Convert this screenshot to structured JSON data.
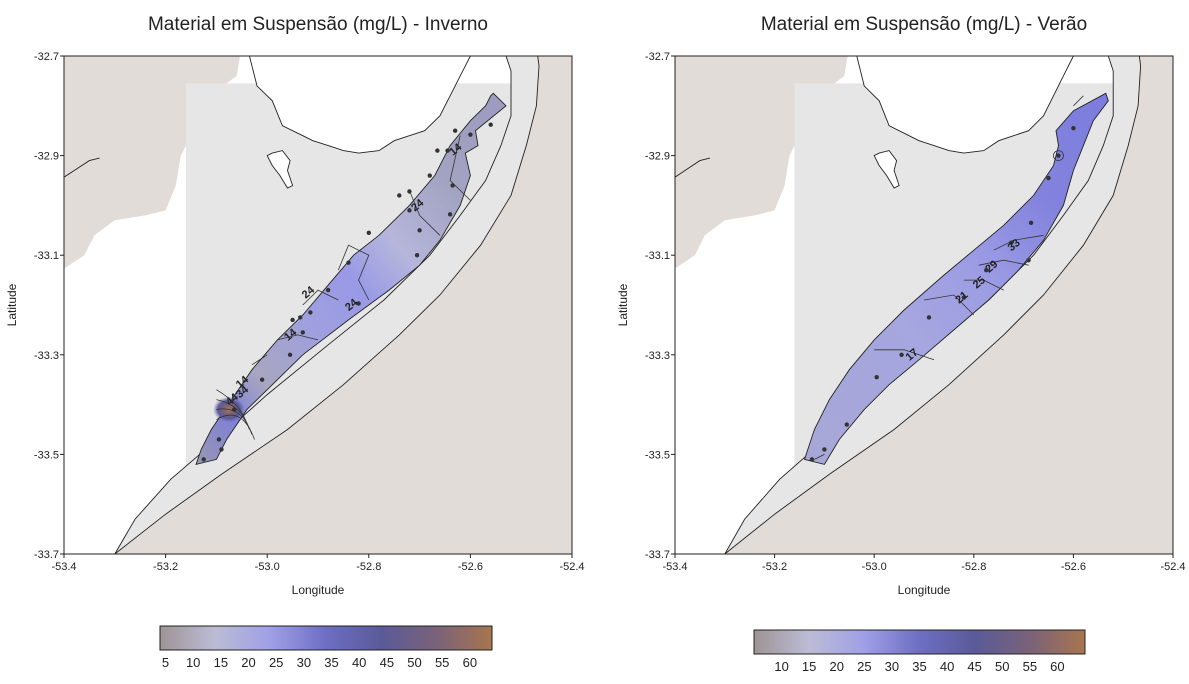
{
  "colorscale": {
    "stops": [
      "#9e9494",
      "#bcbcd6",
      "#9f9fe6",
      "#6e6ec4",
      "#5a5a99",
      "#7a6279",
      "#a8764f"
    ]
  },
  "colors": {
    "land": "#e2dcd9",
    "grid_area": "#e6e6e6",
    "water": "#ffffff",
    "contour": "#333333",
    "station": "#333333"
  },
  "chart_data": [
    {
      "type": "contour map",
      "title": "Material em Suspensão (mg/L) - Inverno",
      "xlabel": "Longitude",
      "ylabel": "Latitude",
      "xlim": [
        -53.4,
        -52.4
      ],
      "ylim": [
        -33.7,
        -32.7
      ],
      "x_ticks": [
        "-53.4",
        "-53.2",
        "-53.0",
        "-52.8",
        "-52.6",
        "-52.4"
      ],
      "y_ticks": [
        "-32.7",
        "-32.9",
        "-33.1",
        "-33.3",
        "-33.5",
        "-33.7"
      ],
      "colorbar": {
        "ticks": [
          "5",
          "10",
          "15",
          "20",
          "25",
          "30",
          "35",
          "40",
          "45",
          "50",
          "55",
          "60"
        ],
        "range": [
          4,
          64
        ]
      },
      "contour_labels": [
        {
          "text": "14",
          "lon": -52.625,
          "lat": -32.893
        },
        {
          "text": "24",
          "lon": -52.7,
          "lat": -33.005
        },
        {
          "text": "24",
          "lon": -52.915,
          "lat": -33.18
        },
        {
          "text": "24",
          "lon": -52.83,
          "lat": -33.205
        },
        {
          "text": "14",
          "lon": -52.95,
          "lat": -33.265
        },
        {
          "text": "14",
          "lon": -53.045,
          "lat": -33.36
        },
        {
          "text": "34",
          "lon": -53.045,
          "lat": -33.38
        },
        {
          "text": "44",
          "lon": -53.065,
          "lat": -33.395
        }
      ],
      "stations": [
        {
          "lon": -52.56,
          "lat": -32.838
        },
        {
          "lon": -52.6,
          "lat": -32.858
        },
        {
          "lon": -52.63,
          "lat": -32.85
        },
        {
          "lon": -52.645,
          "lat": -32.89
        },
        {
          "lon": -52.665,
          "lat": -32.89
        },
        {
          "lon": -52.68,
          "lat": -32.94
        },
        {
          "lon": -52.72,
          "lat": -32.972
        },
        {
          "lon": -52.74,
          "lat": -32.98
        },
        {
          "lon": -52.635,
          "lat": -32.96
        },
        {
          "lon": -52.64,
          "lat": -33.018
        },
        {
          "lon": -52.72,
          "lat": -33.01
        },
        {
          "lon": -52.7,
          "lat": -33.05
        },
        {
          "lon": -52.8,
          "lat": -33.055
        },
        {
          "lon": -52.705,
          "lat": -33.1
        },
        {
          "lon": -52.84,
          "lat": -33.115
        },
        {
          "lon": -52.88,
          "lat": -33.17
        },
        {
          "lon": -52.82,
          "lat": -33.197
        },
        {
          "lon": -52.935,
          "lat": -33.225
        },
        {
          "lon": -52.915,
          "lat": -33.215
        },
        {
          "lon": -52.95,
          "lat": -33.23
        },
        {
          "lon": -52.93,
          "lat": -33.255
        },
        {
          "lon": -52.955,
          "lat": -33.3
        },
        {
          "lon": -53.01,
          "lat": -33.35
        },
        {
          "lon": -53.065,
          "lat": -33.41
        },
        {
          "lon": -53.095,
          "lat": -33.47
        },
        {
          "lon": -53.09,
          "lat": -33.49
        },
        {
          "lon": -53.125,
          "lat": -33.51
        }
      ]
    },
    {
      "type": "contour map",
      "title": "Material em Suspensão (mg/L) - Verão",
      "xlabel": "Longitude",
      "ylabel": "Latitude",
      "xlim": [
        -53.4,
        -52.4
      ],
      "ylim": [
        -33.7,
        -32.7
      ],
      "x_ticks": [
        "-53.4",
        "-53.2",
        "-53.0",
        "-52.8",
        "-52.6",
        "-52.4"
      ],
      "y_ticks": [
        "-32.7",
        "-32.9",
        "-33.1",
        "-33.3",
        "-33.5",
        "-33.7"
      ],
      "colorbar": {
        "ticks": [
          "10",
          "15",
          "20",
          "25",
          "30",
          "35",
          "40",
          "45",
          "50",
          "55",
          "60"
        ],
        "range": [
          5,
          65
        ]
      },
      "contour_labels": [
        {
          "text": "33",
          "lon": -52.715,
          "lat": -33.085
        },
        {
          "text": "29",
          "lon": -52.76,
          "lat": -33.128
        },
        {
          "text": "25",
          "lon": -52.785,
          "lat": -33.16
        },
        {
          "text": "21",
          "lon": -52.82,
          "lat": -33.19
        },
        {
          "text": "17",
          "lon": -52.92,
          "lat": -33.305
        }
      ],
      "stations": [
        {
          "lon": -52.6,
          "lat": -32.845
        },
        {
          "lon": -52.63,
          "lat": -32.9
        },
        {
          "lon": -52.65,
          "lat": -32.945
        },
        {
          "lon": -52.685,
          "lat": -33.035
        },
        {
          "lon": -52.725,
          "lat": -33.075
        },
        {
          "lon": -52.69,
          "lat": -33.11
        },
        {
          "lon": -52.775,
          "lat": -33.13
        },
        {
          "lon": -52.82,
          "lat": -33.185
        },
        {
          "lon": -52.89,
          "lat": -33.225
        },
        {
          "lon": -52.945,
          "lat": -33.3
        },
        {
          "lon": -52.995,
          "lat": -33.345
        },
        {
          "lon": -53.055,
          "lat": -33.44
        },
        {
          "lon": -53.1,
          "lat": -33.49
        },
        {
          "lon": -53.125,
          "lat": -33.51
        }
      ]
    }
  ]
}
